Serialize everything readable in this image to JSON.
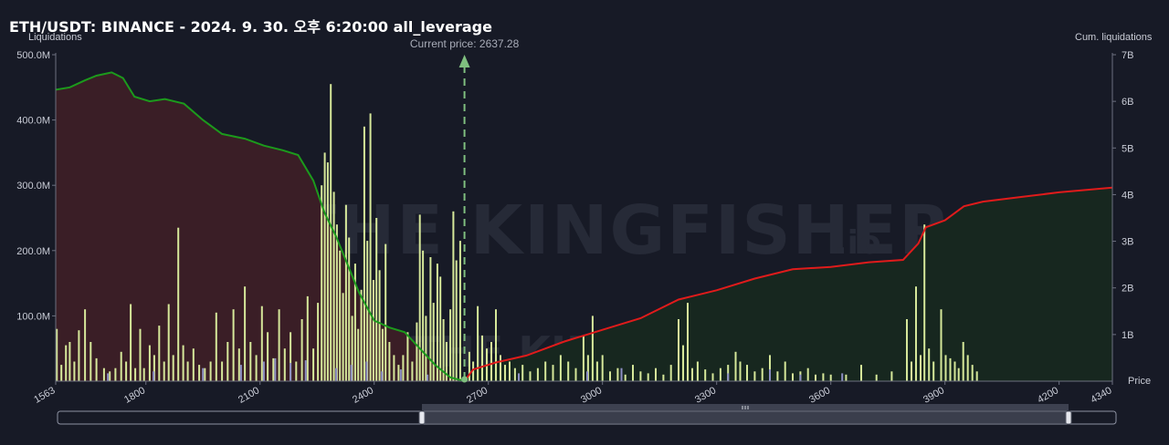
{
  "title": "ETH/USDT: BINANCE - 2024. 9. 30. 오후 6:20:00 all_leverage",
  "current_price_label": "Current price: 2637.28",
  "watermark": {
    "main": "THE KINGFISHER",
    "suffix": ".io"
  },
  "colors": {
    "background": "#171a26",
    "short_cum_line": "#1c9a1c",
    "long_cum_line": "#e01b1b",
    "short_area": "#3a1e26",
    "long_area": "#17271f",
    "bar_main": "#d6e89a",
    "bar_alt": "#8d8fc4",
    "current_price_line": "#7fbf7f"
  },
  "chart_data": {
    "type": "bar",
    "title": "ETH/USDT: BINANCE - 2024. 9. 30. 오후 6:20:00 all_leverage",
    "current_price": 2637.28,
    "x_axis": {
      "label": "Price",
      "min": 1563,
      "max": 4340,
      "ticks": [
        1563,
        1800,
        2100,
        2400,
        2700,
        3000,
        3300,
        3600,
        3900,
        4200,
        4340
      ]
    },
    "y_left": {
      "label": "Liquidations",
      "min": 0,
      "max": 500000000,
      "ticks": [
        100000000,
        200000000,
        300000000,
        400000000,
        500000000
      ],
      "tick_labels": [
        "100.0M",
        "200.0M",
        "300.0M",
        "400.0M",
        "500.0M"
      ]
    },
    "y_right": {
      "label": "Cum. liquidations",
      "min": 0,
      "max": 7000000000,
      "ticks": [
        1000000000,
        2000000000,
        3000000000,
        4000000000,
        5000000000,
        6000000000,
        7000000000
      ],
      "tick_labels": [
        "1B",
        "2B",
        "3B",
        "4B",
        "5B",
        "6B",
        "7B"
      ]
    },
    "short_cumulative": {
      "name": "",
      "points": [
        [
          1563,
          6250000000.0
        ],
        [
          1600,
          6300000000.0
        ],
        [
          1640,
          6450000000.0
        ],
        [
          1670,
          6550000000.0
        ],
        [
          1710,
          6620000000.0
        ],
        [
          1740,
          6500000000.0
        ],
        [
          1770,
          6100000000.0
        ],
        [
          1810,
          6000000000.0
        ],
        [
          1850,
          6050000000.0
        ],
        [
          1900,
          5950000000.0
        ],
        [
          1950,
          5600000000.0
        ],
        [
          2000,
          5300000000.0
        ],
        [
          2060,
          5200000000.0
        ],
        [
          2110,
          5050000000.0
        ],
        [
          2160,
          4950000000.0
        ],
        [
          2200,
          4850000000.0
        ],
        [
          2240,
          4300000000.0
        ],
        [
          2270,
          3600000000.0
        ],
        [
          2300,
          3100000000.0
        ],
        [
          2330,
          2500000000.0
        ],
        [
          2360,
          1900000000.0
        ],
        [
          2400,
          1300000000.0
        ],
        [
          2440,
          1150000000.0
        ],
        [
          2480,
          1050000000.0
        ],
        [
          2520,
          700000000.0
        ],
        [
          2560,
          350000000.0
        ],
        [
          2600,
          80000000.0
        ],
        [
          2637,
          0.0
        ]
      ]
    },
    "long_cumulative": {
      "name": "",
      "points": [
        [
          2637,
          0.0
        ],
        [
          2660,
          250000000.0
        ],
        [
          2720,
          400000000.0
        ],
        [
          2800,
          550000000.0
        ],
        [
          2900,
          850000000.0
        ],
        [
          3000,
          1100000000.0
        ],
        [
          3100,
          1350000000.0
        ],
        [
          3200,
          1750000000.0
        ],
        [
          3300,
          1950000000.0
        ],
        [
          3400,
          2200000000.0
        ],
        [
          3500,
          2400000000.0
        ],
        [
          3600,
          2450000000.0
        ],
        [
          3700,
          2550000000.0
        ],
        [
          3790,
          2600000000.0
        ],
        [
          3830,
          2950000000.0
        ],
        [
          3850,
          3300000000.0
        ],
        [
          3900,
          3450000000.0
        ],
        [
          3950,
          3750000000.0
        ],
        [
          4000,
          3850000000.0
        ],
        [
          4100,
          3950000000.0
        ],
        [
          4200,
          4050000000.0
        ],
        [
          4340,
          4150000000.0
        ]
      ]
    },
    "bars": [
      [
        1566,
        80000000.0
      ],
      [
        1578,
        25000000.0
      ],
      [
        1590,
        55000000.0
      ],
      [
        1600,
        60000000.0
      ],
      [
        1612,
        30000000.0
      ],
      [
        1624,
        78000000.0
      ],
      [
        1640,
        110000000.0
      ],
      [
        1655,
        60000000.0
      ],
      [
        1670,
        35000000.0
      ],
      [
        1690,
        20000000.0
      ],
      [
        1705,
        15000000.0
      ],
      [
        1720,
        20000000.0
      ],
      [
        1735,
        45000000.0
      ],
      [
        1748,
        30000000.0
      ],
      [
        1760,
        118000000.0
      ],
      [
        1772,
        20000000.0
      ],
      [
        1785,
        80000000.0
      ],
      [
        1795,
        20000000.0
      ],
      [
        1810,
        55000000.0
      ],
      [
        1822,
        40000000.0
      ],
      [
        1835,
        85000000.0
      ],
      [
        1848,
        30000000.0
      ],
      [
        1860,
        118000000.0
      ],
      [
        1872,
        40000000.0
      ],
      [
        1885,
        235000000.0
      ],
      [
        1898,
        55000000.0
      ],
      [
        1910,
        30000000.0
      ],
      [
        1925,
        50000000.0
      ],
      [
        1940,
        25000000.0
      ],
      [
        1955,
        20000000.0
      ],
      [
        1970,
        30000000.0
      ],
      [
        1985,
        105000000.0
      ],
      [
        2000,
        30000000.0
      ],
      [
        2015,
        60000000.0
      ],
      [
        2030,
        110000000.0
      ],
      [
        2045,
        50000000.0
      ],
      [
        2060,
        145000000.0
      ],
      [
        2075,
        60000000.0
      ],
      [
        2090,
        40000000.0
      ],
      [
        2105,
        115000000.0
      ],
      [
        2120,
        75000000.0
      ],
      [
        2135,
        35000000.0
      ],
      [
        2150,
        110000000.0
      ],
      [
        2165,
        50000000.0
      ],
      [
        2180,
        75000000.0
      ],
      [
        2195,
        30000000.0
      ],
      [
        2210,
        95000000.0
      ],
      [
        2225,
        130000000.0
      ],
      [
        2240,
        50000000.0
      ],
      [
        2252,
        120000000.0
      ],
      [
        2262,
        300000000.0
      ],
      [
        2270,
        350000000.0
      ],
      [
        2278,
        335000000.0
      ],
      [
        2286,
        455000000.0
      ],
      [
        2294,
        290000000.0
      ],
      [
        2302,
        240000000.0
      ],
      [
        2310,
        200000000.0
      ],
      [
        2318,
        135000000.0
      ],
      [
        2326,
        270000000.0
      ],
      [
        2334,
        220000000.0
      ],
      [
        2342,
        100000000.0
      ],
      [
        2350,
        180000000.0
      ],
      [
        2358,
        80000000.0
      ],
      [
        2366,
        140000000.0
      ],
      [
        2374,
        390000000.0
      ],
      [
        2382,
        215000000.0
      ],
      [
        2390,
        410000000.0
      ],
      [
        2398,
        155000000.0
      ],
      [
        2406,
        250000000.0
      ],
      [
        2414,
        170000000.0
      ],
      [
        2422,
        80000000.0
      ],
      [
        2430,
        210000000.0
      ],
      [
        2440,
        60000000.0
      ],
      [
        2452,
        40000000.0
      ],
      [
        2464,
        25000000.0
      ],
      [
        2476,
        40000000.0
      ],
      [
        2488,
        75000000.0
      ],
      [
        2500,
        30000000.0
      ],
      [
        2512,
        90000000.0
      ],
      [
        2520,
        255000000.0
      ],
      [
        2528,
        200000000.0
      ],
      [
        2536,
        100000000.0
      ],
      [
        2548,
        190000000.0
      ],
      [
        2556,
        120000000.0
      ],
      [
        2566,
        180000000.0
      ],
      [
        2574,
        160000000.0
      ],
      [
        2582,
        95000000.0
      ],
      [
        2590,
        60000000.0
      ],
      [
        2600,
        110000000.0
      ],
      [
        2608,
        260000000.0
      ],
      [
        2616,
        185000000.0
      ],
      [
        2626,
        215000000.0
      ],
      [
        2650,
        45000000.0
      ],
      [
        2660,
        30000000.0
      ],
      [
        2672,
        115000000.0
      ],
      [
        2684,
        70000000.0
      ],
      [
        2696,
        50000000.0
      ],
      [
        2708,
        60000000.0
      ],
      [
        2720,
        110000000.0
      ],
      [
        2732,
        40000000.0
      ],
      [
        2744,
        25000000.0
      ],
      [
        2756,
        30000000.0
      ],
      [
        2770,
        20000000.0
      ],
      [
        2790,
        25000000.0
      ],
      [
        2810,
        15000000.0
      ],
      [
        2830,
        20000000.0
      ],
      [
        2850,
        30000000.0
      ],
      [
        2870,
        25000000.0
      ],
      [
        2890,
        40000000.0
      ],
      [
        2910,
        30000000.0
      ],
      [
        2930,
        20000000.0
      ],
      [
        2950,
        70000000.0
      ],
      [
        2962,
        40000000.0
      ],
      [
        2974,
        100000000.0
      ],
      [
        2986,
        30000000.0
      ],
      [
        3000,
        40000000.0
      ],
      [
        3020,
        15000000.0
      ],
      [
        3040,
        20000000.0
      ],
      [
        3060,
        10000000.0
      ],
      [
        3080,
        25000000.0
      ],
      [
        3100,
        15000000.0
      ],
      [
        3120,
        12000000.0
      ],
      [
        3140,
        20000000.0
      ],
      [
        3160,
        10000000.0
      ],
      [
        3180,
        25000000.0
      ],
      [
        3200,
        95000000.0
      ],
      [
        3212,
        55000000.0
      ],
      [
        3224,
        120000000.0
      ],
      [
        3236,
        20000000.0
      ],
      [
        3250,
        30000000.0
      ],
      [
        3270,
        18000000.0
      ],
      [
        3290,
        12000000.0
      ],
      [
        3310,
        20000000.0
      ],
      [
        3330,
        25000000.0
      ],
      [
        3350,
        45000000.0
      ],
      [
        3362,
        30000000.0
      ],
      [
        3380,
        25000000.0
      ],
      [
        3400,
        15000000.0
      ],
      [
        3420,
        20000000.0
      ],
      [
        3440,
        40000000.0
      ],
      [
        3460,
        15000000.0
      ],
      [
        3480,
        30000000.0
      ],
      [
        3500,
        12000000.0
      ],
      [
        3520,
        15000000.0
      ],
      [
        3540,
        20000000.0
      ],
      [
        3560,
        10000000.0
      ],
      [
        3580,
        12000000.0
      ],
      [
        3600,
        10000000.0
      ],
      [
        3640,
        10000000.0
      ],
      [
        3680,
        25000000.0
      ],
      [
        3720,
        10000000.0
      ],
      [
        3760,
        15000000.0
      ],
      [
        3800,
        95000000.0
      ],
      [
        3812,
        30000000.0
      ],
      [
        3824,
        145000000.0
      ],
      [
        3836,
        40000000.0
      ],
      [
        3846,
        240000000.0
      ],
      [
        3858,
        50000000.0
      ],
      [
        3870,
        30000000.0
      ],
      [
        3890,
        110000000.0
      ],
      [
        3902,
        40000000.0
      ],
      [
        3914,
        35000000.0
      ],
      [
        3926,
        30000000.0
      ],
      [
        3936,
        20000000.0
      ],
      [
        3948,
        60000000.0
      ],
      [
        3960,
        40000000.0
      ],
      [
        3972,
        25000000.0
      ],
      [
        3984,
        15000000.0
      ]
    ],
    "bars_alt": [
      [
        1700,
        12000000.0
      ],
      [
        1820,
        15000000.0
      ],
      [
        1950,
        20000000.0
      ],
      [
        2050,
        25000000.0
      ],
      [
        2110,
        30000000.0
      ],
      [
        2140,
        35000000.0
      ],
      [
        2180,
        28000000.0
      ],
      [
        2220,
        32000000.0
      ],
      [
        2300,
        20000000.0
      ],
      [
        2340,
        25000000.0
      ],
      [
        2380,
        30000000.0
      ],
      [
        2420,
        15000000.0
      ],
      [
        2470,
        18000000.0
      ],
      [
        2540,
        10000000.0
      ],
      [
        2780,
        12000000.0
      ],
      [
        2960,
        15000000.0
      ],
      [
        3050,
        20000000.0
      ],
      [
        3330,
        12000000.0
      ],
      [
        3440,
        18000000.0
      ],
      [
        3520,
        10000000.0
      ],
      [
        3630,
        12000000.0
      ]
    ]
  }
}
